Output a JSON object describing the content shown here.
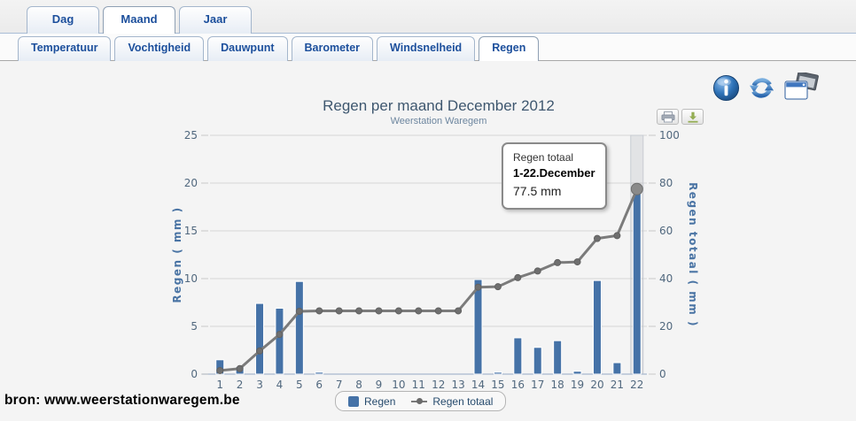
{
  "tabs_primary": {
    "active": "Maand",
    "items": [
      {
        "label": "Dag"
      },
      {
        "label": "Maand"
      },
      {
        "label": "Jaar"
      }
    ]
  },
  "tabs_secondary": {
    "active": "Regen",
    "items": [
      {
        "label": "Temperatuur"
      },
      {
        "label": "Vochtigheid"
      },
      {
        "label": "Dauwpunt"
      },
      {
        "label": "Barometer"
      },
      {
        "label": "Windsnelheid"
      },
      {
        "label": "Regen"
      }
    ]
  },
  "toolbar": {
    "icons": [
      {
        "name": "info-icon"
      },
      {
        "name": "refresh-icon"
      },
      {
        "name": "windows-icon"
      }
    ],
    "export": [
      {
        "name": "print-icon"
      },
      {
        "name": "download-icon"
      }
    ]
  },
  "chart": {
    "title": "Regen per maand December 2012",
    "subtitle": "Weerstation Waregem",
    "tooltip": {
      "series": "Regen totaal",
      "period": "1-22.December",
      "value": "77.5 mm"
    },
    "legend": [
      {
        "label": "Regen",
        "type": "bar",
        "color": "#4572A7"
      },
      {
        "label": "Regen totaal",
        "type": "line",
        "color": "#7B7B7B"
      }
    ]
  },
  "chart_data": {
    "type": "bar",
    "title": "Regen per maand December 2012",
    "subtitle": "Weerstation Waregem",
    "categories": [
      "1",
      "2",
      "3",
      "4",
      "5",
      "6",
      "7",
      "8",
      "9",
      "10",
      "11",
      "12",
      "13",
      "14",
      "15",
      "16",
      "17",
      "18",
      "19",
      "20",
      "21",
      "22"
    ],
    "series": [
      {
        "name": "Regen",
        "type": "bar",
        "axis": "left",
        "color": "#4572A7",
        "values": [
          1.5,
          0.8,
          7.4,
          6.9,
          9.7,
          0.2,
          0,
          0,
          0,
          0,
          0,
          0,
          0,
          9.9,
          0.2,
          3.8,
          2.8,
          3.5,
          0.3,
          9.8,
          1.2,
          19.5
        ]
      },
      {
        "name": "Regen totaal",
        "type": "line",
        "axis": "right",
        "color": "#7B7B7B",
        "values": [
          1.5,
          2.3,
          9.7,
          16.6,
          26.3,
          26.5,
          26.5,
          26.5,
          26.5,
          26.5,
          26.5,
          26.5,
          26.5,
          36.4,
          36.6,
          40.4,
          43.2,
          46.7,
          47.0,
          56.8,
          58.0,
          77.5
        ]
      }
    ],
    "xlabel": "",
    "ylabel_left": "Regen ( mm )",
    "ylabel_right": "Regen totaal ( mm )",
    "ylim_left": [
      0,
      25
    ],
    "yticks_left": [
      0,
      5,
      10,
      15,
      20,
      25
    ],
    "ylim_right": [
      0,
      100
    ],
    "yticks_right": [
      0,
      20,
      40,
      60,
      80,
      100
    ],
    "grid": true,
    "legend_position": "bottom",
    "highlight_index": 21
  },
  "footer": {
    "source": "bron: www.weerstationwaregem.be"
  }
}
